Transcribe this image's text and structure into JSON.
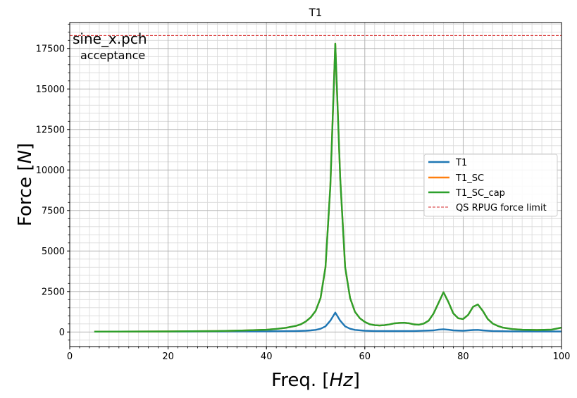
{
  "chart_data": {
    "type": "line",
    "title": "T1",
    "xlabel": "Freq. [Hz]",
    "xlabel_parts": {
      "prefix": "Freq. [",
      "unit": "Hz",
      "suffix": "]"
    },
    "ylabel": "Force [N]",
    "ylabel_parts": {
      "prefix": "Force [",
      "unit": "N",
      "suffix": "]"
    },
    "xlim": [
      0,
      100
    ],
    "ylim": [
      -900,
      19100
    ],
    "x_ticks": [
      0,
      20,
      40,
      60,
      80,
      100
    ],
    "x_tick_labels": [
      "0",
      "20",
      "40",
      "60",
      "80",
      "100"
    ],
    "y_ticks": [
      0,
      2500,
      5000,
      7500,
      10000,
      12500,
      15000,
      17500
    ],
    "y_tick_labels": [
      "0",
      "2500",
      "5000",
      "7500",
      "10000",
      "12500",
      "15000",
      "17500"
    ],
    "x_minor_step": 2,
    "y_minor_step": 500,
    "grid": "major and minor",
    "legend_position": "center-right",
    "annotations": [
      "sine_x.pch",
      "acceptance"
    ],
    "hline": {
      "name": "QS RPUG force limit",
      "y": 18300,
      "color": "#d62728",
      "style": "dashed"
    },
    "series": [
      {
        "name": "T1",
        "color": "#1f77b4",
        "x": [
          5,
          10,
          20,
          30,
          40,
          44,
          46,
          48,
          49,
          50,
          51,
          52,
          53,
          54,
          55,
          56,
          57,
          58,
          60,
          62,
          65,
          70,
          74,
          75,
          76,
          77,
          78,
          80,
          82,
          83,
          84,
          86,
          90,
          95,
          100
        ],
        "y": [
          20,
          22,
          25,
          30,
          40,
          50,
          60,
          80,
          100,
          130,
          200,
          350,
          700,
          1200,
          700,
          350,
          200,
          130,
          80,
          60,
          55,
          60,
          100,
          150,
          170,
          140,
          100,
          80,
          120,
          130,
          100,
          60,
          40,
          35,
          30
        ]
      },
      {
        "name": "T1_SC",
        "color": "#ff7f0e",
        "x": [
          5,
          10,
          20,
          30,
          35,
          40,
          42,
          44,
          46,
          47,
          48,
          49,
          50,
          51,
          52,
          53,
          54,
          55,
          56,
          57,
          58,
          59,
          60,
          61,
          62,
          63,
          64,
          65,
          66,
          67,
          68,
          69,
          70,
          71,
          72,
          73,
          74,
          75,
          76,
          77,
          78,
          79,
          80,
          81,
          82,
          83,
          84,
          85,
          86,
          87,
          88,
          90,
          92,
          95,
          98,
          100
        ],
        "y": [
          20,
          25,
          35,
          60,
          90,
          140,
          190,
          260,
          380,
          480,
          650,
          900,
          1300,
          2100,
          4000,
          9000,
          17800,
          9500,
          4000,
          2100,
          1250,
          850,
          620,
          480,
          420,
          400,
          420,
          470,
          530,
          560,
          570,
          540,
          470,
          450,
          520,
          700,
          1150,
          1800,
          2450,
          1850,
          1150,
          850,
          800,
          1050,
          1550,
          1700,
          1300,
          800,
          520,
          380,
          280,
          180,
          140,
          120,
          150,
          270
        ]
      },
      {
        "name": "T1_SC_cap",
        "color": "#2ca02c",
        "x": [
          5,
          10,
          20,
          30,
          35,
          40,
          42,
          44,
          46,
          47,
          48,
          49,
          50,
          51,
          52,
          53,
          54,
          55,
          56,
          57,
          58,
          59,
          60,
          61,
          62,
          63,
          64,
          65,
          66,
          67,
          68,
          69,
          70,
          71,
          72,
          73,
          74,
          75,
          76,
          77,
          78,
          79,
          80,
          81,
          82,
          83,
          84,
          85,
          86,
          87,
          88,
          90,
          92,
          95,
          98,
          100
        ],
        "y": [
          20,
          25,
          35,
          60,
          90,
          140,
          190,
          260,
          380,
          480,
          650,
          900,
          1300,
          2100,
          4000,
          9000,
          17800,
          9500,
          4000,
          2100,
          1250,
          850,
          620,
          480,
          420,
          400,
          420,
          470,
          530,
          560,
          570,
          540,
          470,
          450,
          520,
          700,
          1150,
          1800,
          2450,
          1850,
          1150,
          850,
          800,
          1050,
          1550,
          1700,
          1300,
          800,
          520,
          380,
          280,
          180,
          140,
          120,
          150,
          270
        ]
      }
    ]
  }
}
